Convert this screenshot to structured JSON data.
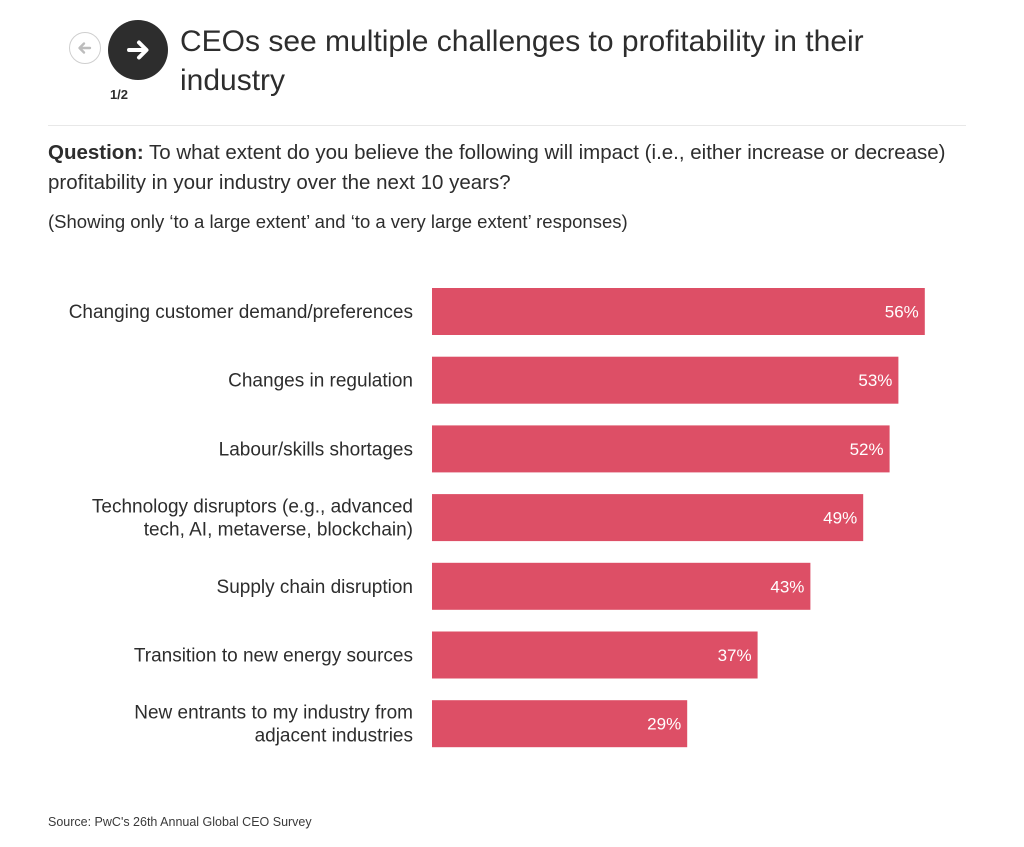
{
  "nav": {
    "prev_icon": "arrow-left-icon",
    "next_icon": "arrow-right-icon",
    "pager": "1/2"
  },
  "header": {
    "title": "CEOs see multiple challenges to profitability in their industry"
  },
  "question": {
    "label": "Question:",
    "text": "To what extent do you believe the following will impact (i.e., either increase or decrease) profitability in your industry over the next 10 years?",
    "note": "(Showing only ‘to a large extent’ and ‘to a very large extent’ responses)"
  },
  "chart_data": {
    "type": "bar",
    "orientation": "horizontal",
    "categories": [
      [
        "Changing customer demand/preferences"
      ],
      [
        "Changes in regulation"
      ],
      [
        "Labour/skills shortages"
      ],
      [
        "Technology disruptors (e.g., advanced",
        "tech, AI, metaverse, blockchain)"
      ],
      [
        "Supply chain disruption"
      ],
      [
        "Transition to new energy sources"
      ],
      [
        "New entrants to my industry from",
        "adjacent industries"
      ]
    ],
    "values": [
      56,
      53,
      52,
      49,
      43,
      37,
      29
    ],
    "value_labels": [
      "56%",
      "53%",
      "52%",
      "49%",
      "43%",
      "37%",
      "29%"
    ],
    "unit": "%",
    "xlim": [
      0,
      100
    ],
    "bar_color": "#dd4f66",
    "label_color": "#ffffff"
  },
  "footer": {
    "source": "Source: PwC's 26th Annual Global CEO Survey"
  }
}
